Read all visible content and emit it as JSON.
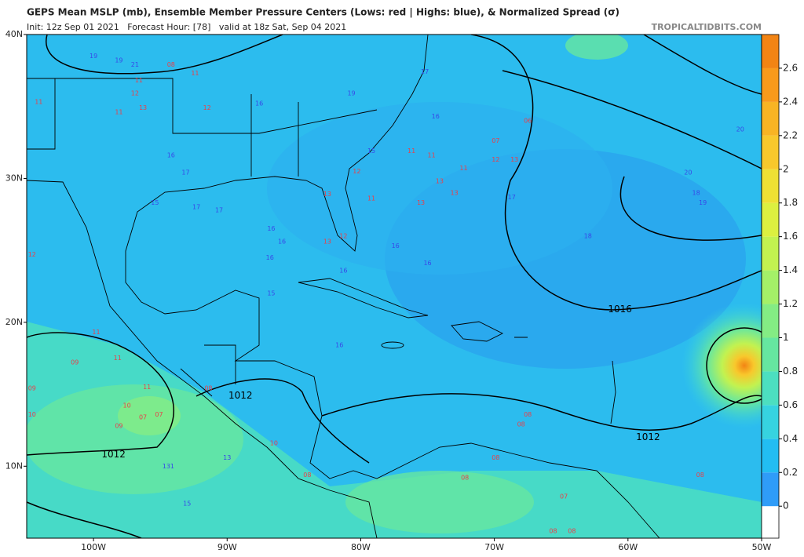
{
  "header": {
    "title": "GEPS Mean MSLP (mb), Ensemble Member Pressure Centers (Lows: red | Highs: blue), & Normalized Spread (σ)",
    "subtitle": "Init: 12z Sep 01 2021   Forecast Hour: [78]   valid at 18z Sat, Sep 04 2021",
    "credit": "TROPICALTIDBITS.COM"
  },
  "map": {
    "lonlim": [
      -105,
      -50
    ],
    "latlim": [
      5,
      40
    ],
    "lonticks": [
      {
        "value": -100,
        "label": "100W"
      },
      {
        "value": -90,
        "label": "90W"
      },
      {
        "value": -80,
        "label": "80W"
      },
      {
        "value": -70,
        "label": "70W"
      },
      {
        "value": -60,
        "label": "60W"
      },
      {
        "value": -50,
        "label": "50W"
      }
    ],
    "latticks": [
      {
        "value": 40,
        "label": "40N"
      },
      {
        "value": 30,
        "label": "30N"
      },
      {
        "value": 20,
        "label": "20N"
      },
      {
        "value": 10,
        "label": "10N"
      }
    ],
    "isobars": [
      {
        "value": 1016,
        "lon": -60.6,
        "lat": 20.9
      },
      {
        "value": 1012,
        "lon": -89.0,
        "lat": 14.9
      },
      {
        "value": 1012,
        "lon": -98.5,
        "lat": 10.8
      },
      {
        "value": 1012,
        "lon": -58.5,
        "lat": 12.0
      }
    ],
    "highs": {
      "color": "#3848e8",
      "centers": [
        {
          "label": "19",
          "lon": -100.0,
          "lat": 38.5
        },
        {
          "label": "19",
          "lon": -98.1,
          "lat": 38.2
        },
        {
          "label": "21",
          "lon": -96.9,
          "lat": 37.9
        },
        {
          "label": "16",
          "lon": -87.6,
          "lat": 35.2
        },
        {
          "label": "19",
          "lon": -80.7,
          "lat": 35.9
        },
        {
          "label": "17",
          "lon": -75.2,
          "lat": 37.4
        },
        {
          "label": "16",
          "lon": -74.4,
          "lat": 34.3
        },
        {
          "label": "15",
          "lon": -79.2,
          "lat": 31.9
        },
        {
          "label": "16",
          "lon": -94.2,
          "lat": 31.6
        },
        {
          "label": "17",
          "lon": -93.1,
          "lat": 30.4
        },
        {
          "label": "15",
          "lon": -95.4,
          "lat": 28.3
        },
        {
          "label": "17",
          "lon": -92.3,
          "lat": 28.0
        },
        {
          "label": "17",
          "lon": -90.6,
          "lat": 27.8
        },
        {
          "label": "16",
          "lon": -86.7,
          "lat": 26.5
        },
        {
          "label": "16",
          "lon": -85.9,
          "lat": 25.6
        },
        {
          "label": "16",
          "lon": -86.8,
          "lat": 24.5
        },
        {
          "label": "16",
          "lon": -81.3,
          "lat": 23.6
        },
        {
          "label": "15",
          "lon": -86.7,
          "lat": 22.0
        },
        {
          "label": "16",
          "lon": -75.0,
          "lat": 24.1
        },
        {
          "label": "16",
          "lon": -77.4,
          "lat": 25.3
        },
        {
          "label": "17",
          "lon": -68.7,
          "lat": 28.7
        },
        {
          "label": "18",
          "lon": -63.0,
          "lat": 26.0
        },
        {
          "label": "18",
          "lon": -54.9,
          "lat": 29.0
        },
        {
          "label": "19",
          "lon": -54.4,
          "lat": 28.3
        },
        {
          "label": "20",
          "lon": -55.5,
          "lat": 30.4
        },
        {
          "label": "20",
          "lon": -51.6,
          "lat": 33.4
        },
        {
          "label": "13",
          "lon": -90.0,
          "lat": 10.6
        },
        {
          "label": "131",
          "lon": -94.4,
          "lat": 10.0
        },
        {
          "label": "15",
          "lon": -93.0,
          "lat": 7.4
        },
        {
          "label": "16",
          "lon": -81.6,
          "lat": 18.4
        }
      ]
    },
    "lows": {
      "color": "#e8404a",
      "centers": [
        {
          "label": "08",
          "lon": -94.2,
          "lat": 37.9
        },
        {
          "label": "11",
          "lon": -92.4,
          "lat": 37.3
        },
        {
          "label": "11",
          "lon": -96.6,
          "lat": 36.8
        },
        {
          "label": "12",
          "lon": -96.9,
          "lat": 35.9
        },
        {
          "label": "13",
          "lon": -96.3,
          "lat": 34.9
        },
        {
          "label": "11",
          "lon": -98.1,
          "lat": 34.6
        },
        {
          "label": "11",
          "lon": -104.1,
          "lat": 35.3
        },
        {
          "label": "12",
          "lon": -91.5,
          "lat": 34.9
        },
        {
          "label": "06",
          "lon": -67.5,
          "lat": 34.0
        },
        {
          "label": "07",
          "lon": -69.9,
          "lat": 32.6
        },
        {
          "label": "12",
          "lon": -69.9,
          "lat": 31.3
        },
        {
          "label": "13",
          "lon": -68.5,
          "lat": 31.3
        },
        {
          "label": "11",
          "lon": -76.2,
          "lat": 31.9
        },
        {
          "label": "11",
          "lon": -74.7,
          "lat": 31.6
        },
        {
          "label": "11",
          "lon": -72.3,
          "lat": 30.7
        },
        {
          "label": "13",
          "lon": -74.1,
          "lat": 29.8
        },
        {
          "label": "13",
          "lon": -73.0,
          "lat": 29.0
        },
        {
          "label": "13",
          "lon": -75.5,
          "lat": 28.3
        },
        {
          "label": "11",
          "lon": -79.2,
          "lat": 28.6
        },
        {
          "label": "12",
          "lon": -80.3,
          "lat": 30.5
        },
        {
          "label": "13",
          "lon": -82.5,
          "lat": 28.9
        },
        {
          "label": "13",
          "lon": -82.5,
          "lat": 25.6
        },
        {
          "label": "12",
          "lon": -81.3,
          "lat": 26.0
        },
        {
          "label": "12",
          "lon": -104.6,
          "lat": 24.7
        },
        {
          "label": "11",
          "lon": -99.8,
          "lat": 19.3
        },
        {
          "label": "09",
          "lon": -101.4,
          "lat": 17.2
        },
        {
          "label": "11",
          "lon": -98.2,
          "lat": 17.5
        },
        {
          "label": "11",
          "lon": -96.0,
          "lat": 15.5
        },
        {
          "label": "10",
          "lon": -97.5,
          "lat": 14.2
        },
        {
          "label": "07",
          "lon": -95.1,
          "lat": 13.6
        },
        {
          "label": "07",
          "lon": -96.3,
          "lat": 13.4
        },
        {
          "label": "09",
          "lon": -98.1,
          "lat": 12.8
        },
        {
          "label": "10",
          "lon": -104.6,
          "lat": 13.6
        },
        {
          "label": "09",
          "lon": -104.6,
          "lat": 15.4
        },
        {
          "label": "08",
          "lon": -91.4,
          "lat": 15.4
        },
        {
          "label": "10",
          "lon": -86.5,
          "lat": 11.6
        },
        {
          "label": "08",
          "lon": -84.0,
          "lat": 9.4
        },
        {
          "label": "08",
          "lon": -67.5,
          "lat": 13.6
        },
        {
          "label": "08",
          "lon": -68.0,
          "lat": 12.9
        },
        {
          "label": "08",
          "lon": -69.9,
          "lat": 10.6
        },
        {
          "label": "08",
          "lon": -72.2,
          "lat": 9.2
        },
        {
          "label": "07",
          "lon": -64.8,
          "lat": 7.9
        },
        {
          "label": "08",
          "lon": -54.6,
          "lat": 9.4
        },
        {
          "label": "08",
          "lon": -65.6,
          "lat": 5.5
        },
        {
          "label": "08",
          "lon": -64.2,
          "lat": 5.5
        }
      ]
    }
  },
  "colorbar": {
    "lim": [
      -0.19,
      2.8
    ],
    "ticks": [
      0,
      0.2,
      0.4,
      0.6,
      0.8,
      1,
      1.2,
      1.4,
      1.6,
      1.8,
      2,
      2.2,
      2.4,
      2.6
    ],
    "under_color": "#ffffff",
    "colors": [
      "#2f9cf8",
      "#22bdf2",
      "#36d3e0",
      "#4cdfc0",
      "#66e6a0",
      "#84ec84",
      "#a4f068",
      "#c2f250",
      "#dcf040",
      "#eee034",
      "#f8c82c",
      "#f8b424",
      "#f89a1c",
      "#f28414"
    ]
  }
}
